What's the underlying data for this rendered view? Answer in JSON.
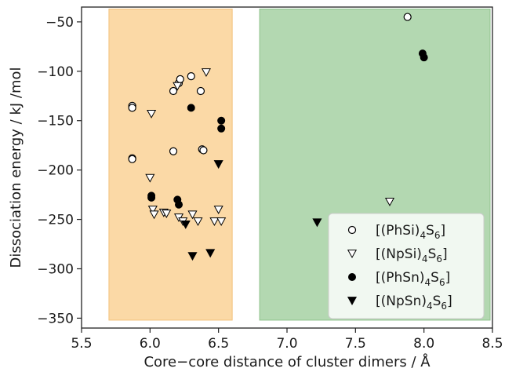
{
  "chart_data": {
    "type": "scatter",
    "xlabel": "Core−core distance of cluster dimers / Å",
    "ylabel": "Dissociation energy / kJ /mol",
    "xlim": [
      5.5,
      8.5
    ],
    "ylim": [
      -360,
      -35
    ],
    "xticks": [
      5.5,
      6.0,
      6.5,
      7.0,
      7.5,
      8.0,
      8.5
    ],
    "xtick_labels": [
      "5.5",
      "6.0",
      "6.5",
      "7.0",
      "7.5",
      "8.0",
      "8.5"
    ],
    "yticks": [
      -350,
      -300,
      -250,
      -200,
      -150,
      -100,
      -50
    ],
    "ytick_labels": [
      "−350",
      "−300",
      "−250",
      "−200",
      "−150",
      "−100",
      "−50"
    ],
    "grid": false,
    "legend_position": "lower-right",
    "shaded_regions": [
      {
        "x_range": [
          5.7,
          6.6
        ],
        "color": "#fbd9a6",
        "edge": "#f2c27c"
      },
      {
        "x_range": [
          6.8,
          8.5
        ],
        "color": "#b3d8b1",
        "edge": "#8fc28c"
      }
    ],
    "series": [
      {
        "name": "[(PhSi)4S6]",
        "label_parts": [
          "[(PhSi)",
          "4",
          "S",
          "6",
          "]"
        ],
        "marker": "circle-open",
        "points": [
          {
            "x": 5.87,
            "y": -135
          },
          {
            "x": 5.87,
            "y": -137
          },
          {
            "x": 5.87,
            "y": -188
          },
          {
            "x": 5.87,
            "y": -189
          },
          {
            "x": 6.17,
            "y": -181
          },
          {
            "x": 6.17,
            "y": -120
          },
          {
            "x": 6.21,
            "y": -112
          },
          {
            "x": 6.22,
            "y": -108
          },
          {
            "x": 6.3,
            "y": -105
          },
          {
            "x": 6.37,
            "y": -120
          },
          {
            "x": 6.38,
            "y": -179
          },
          {
            "x": 6.39,
            "y": -180
          },
          {
            "x": 7.88,
            "y": -45
          }
        ]
      },
      {
        "name": "[(NpSi)4S6]",
        "label_parts": [
          "[(NpSi)",
          "4",
          "S",
          "6",
          "]"
        ],
        "marker": "triangle-down-open",
        "points": [
          {
            "x": 6.01,
            "y": -143
          },
          {
            "x": 6.0,
            "y": -208
          },
          {
            "x": 6.02,
            "y": -240
          },
          {
            "x": 6.03,
            "y": -245
          },
          {
            "x": 6.1,
            "y": -243
          },
          {
            "x": 6.12,
            "y": -244
          },
          {
            "x": 6.2,
            "y": -115
          },
          {
            "x": 6.21,
            "y": -248
          },
          {
            "x": 6.24,
            "y": -252
          },
          {
            "x": 6.31,
            "y": -245
          },
          {
            "x": 6.35,
            "y": -252
          },
          {
            "x": 6.41,
            "y": -101
          },
          {
            "x": 6.47,
            "y": -252
          },
          {
            "x": 6.5,
            "y": -240
          },
          {
            "x": 6.52,
            "y": -252
          },
          {
            "x": 7.75,
            "y": -232
          }
        ]
      },
      {
        "name": "[(PhSn)4S6]",
        "label_parts": [
          "[(PhSn)",
          "4",
          "S",
          "6",
          "]"
        ],
        "marker": "circle-filled",
        "points": [
          {
            "x": 6.01,
            "y": -226
          },
          {
            "x": 6.01,
            "y": -228
          },
          {
            "x": 6.2,
            "y": -230
          },
          {
            "x": 6.21,
            "y": -235
          },
          {
            "x": 6.3,
            "y": -137
          },
          {
            "x": 6.52,
            "y": -150
          },
          {
            "x": 6.52,
            "y": -158
          },
          {
            "x": 7.99,
            "y": -82
          },
          {
            "x": 8.0,
            "y": -86
          }
        ]
      },
      {
        "name": "[(NpSn)4S6]",
        "label_parts": [
          "[(NpSn)",
          "4",
          "S",
          "6",
          "]"
        ],
        "marker": "triangle-down-filled",
        "points": [
          {
            "x": 6.26,
            "y": -255
          },
          {
            "x": 6.31,
            "y": -287
          },
          {
            "x": 6.44,
            "y": -284
          },
          {
            "x": 6.5,
            "y": -194
          },
          {
            "x": 7.22,
            "y": -253
          }
        ]
      }
    ]
  }
}
